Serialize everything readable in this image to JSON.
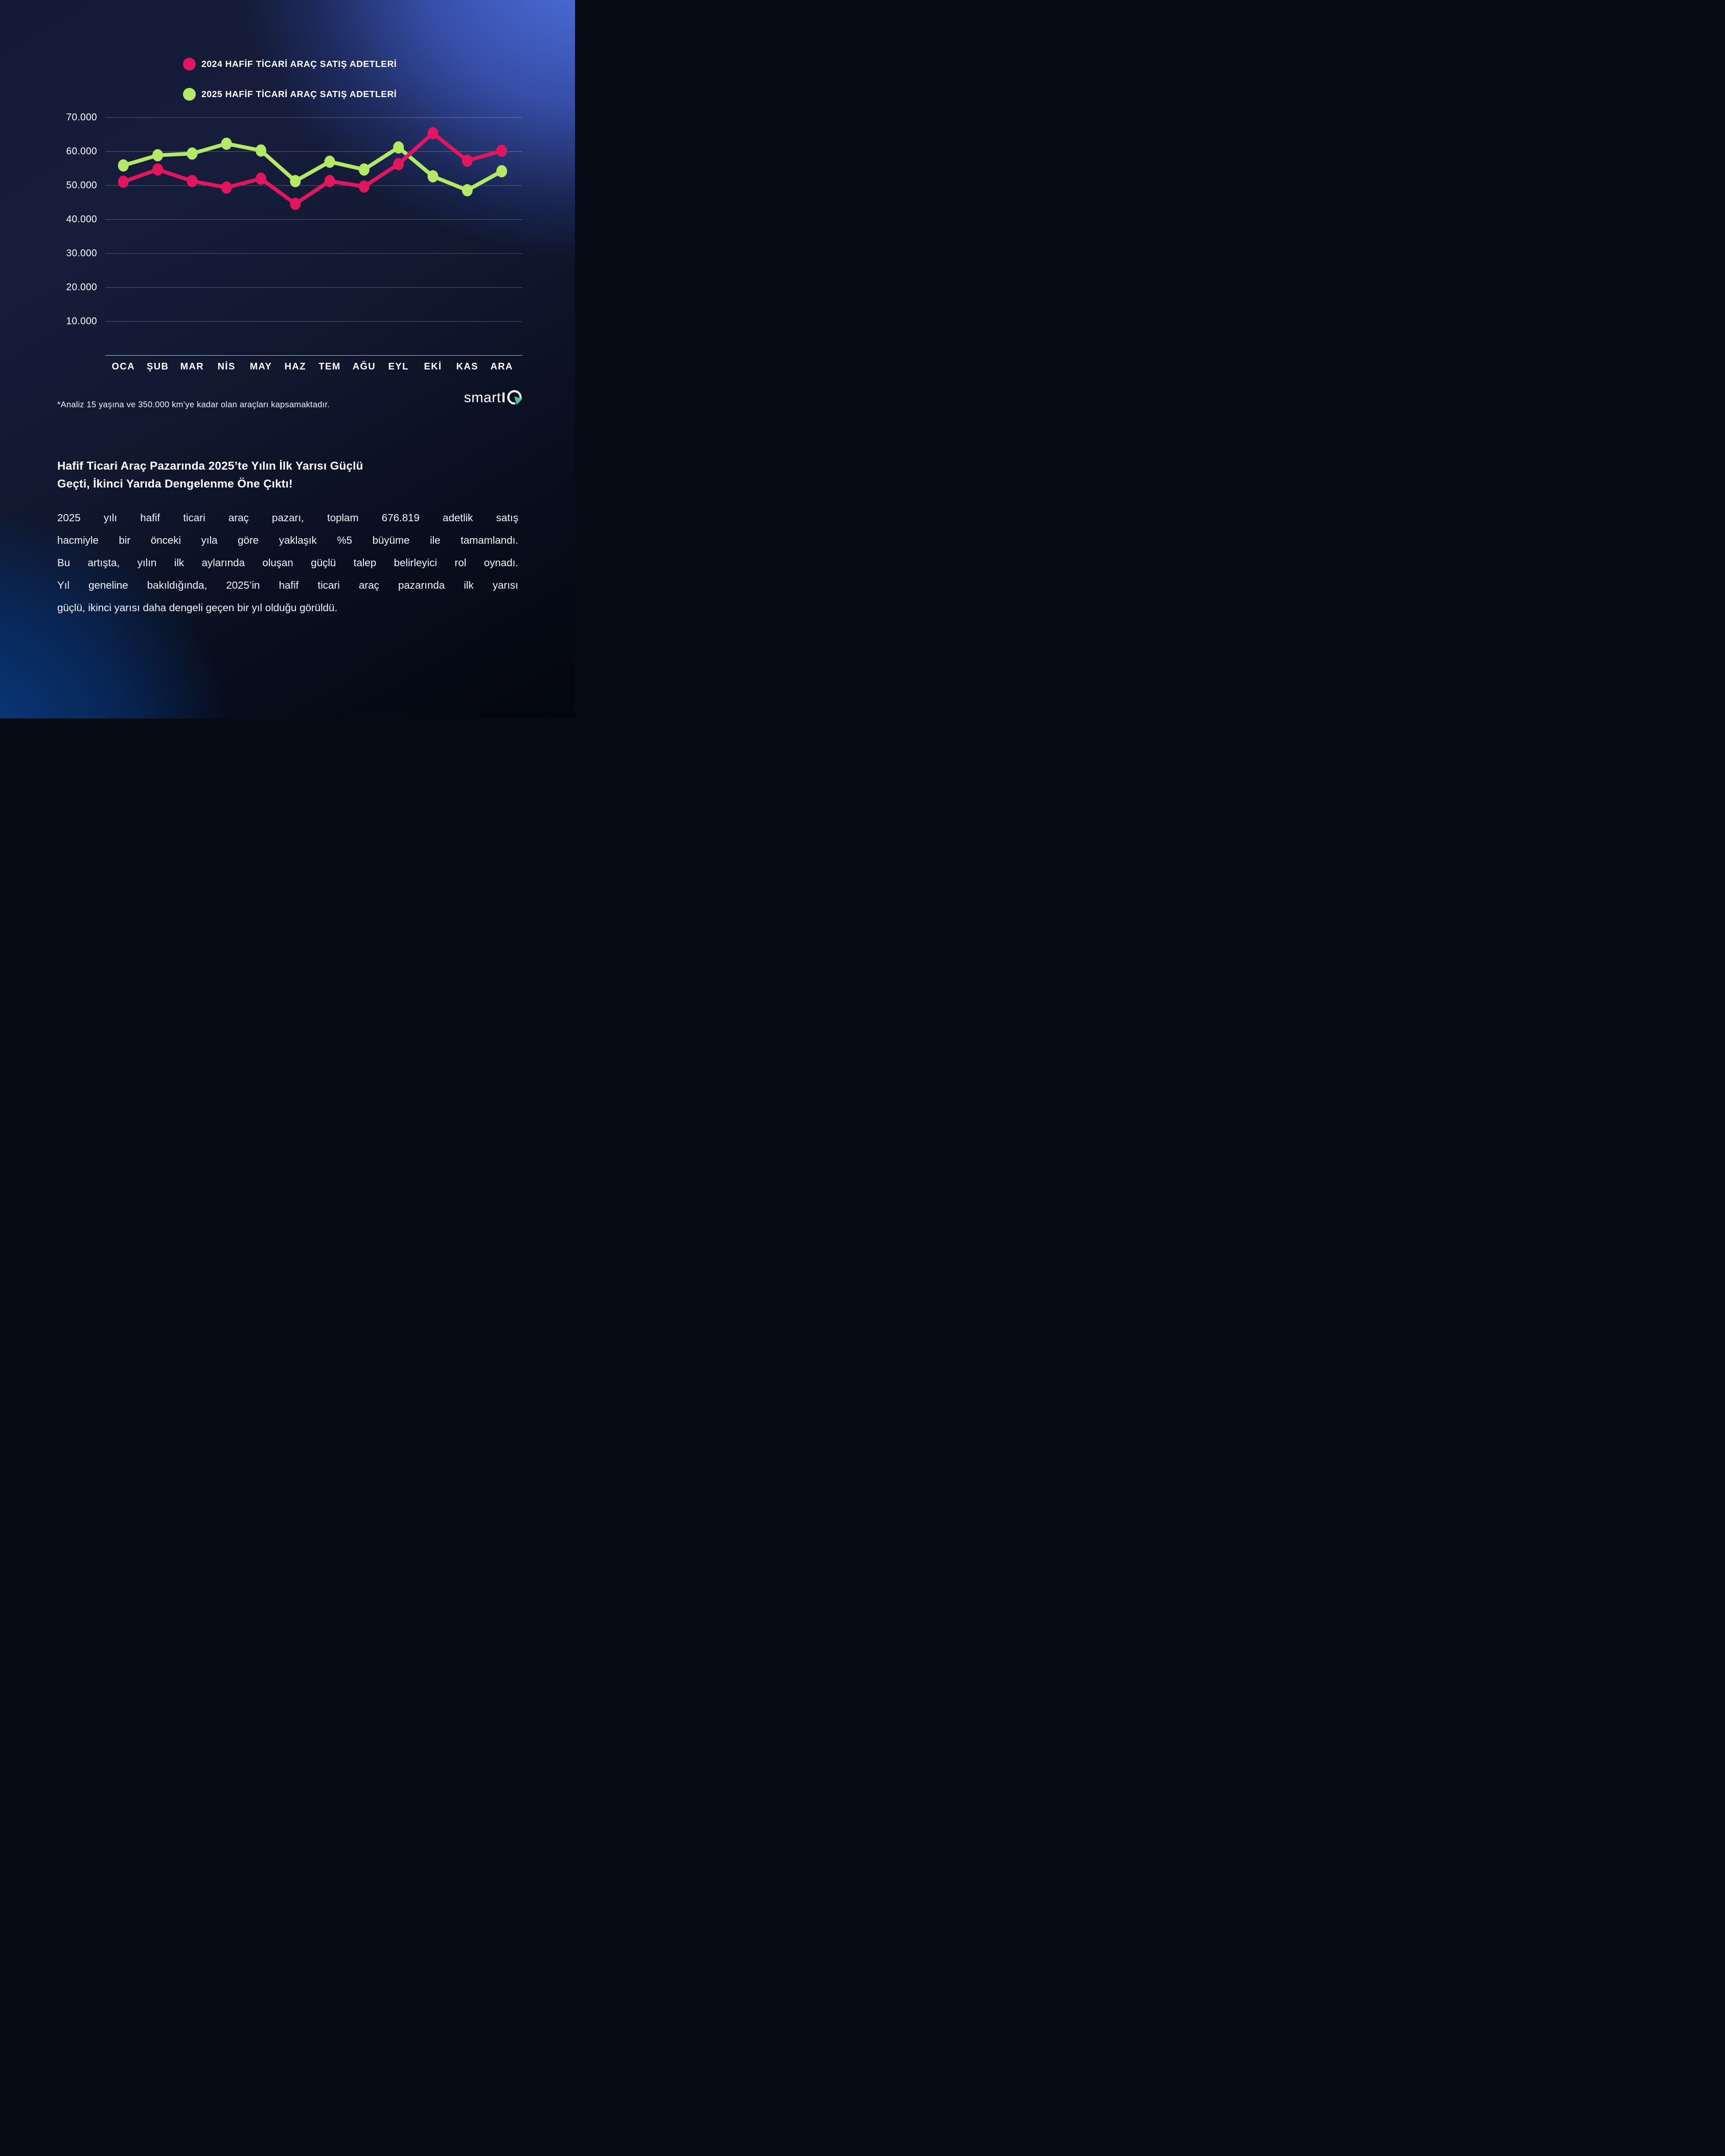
{
  "chart_data": {
    "type": "line",
    "categories": [
      "OCA",
      "ŞUB",
      "MAR",
      "NİS",
      "MAY",
      "HAZ",
      "TEM",
      "AĞU",
      "EYL",
      "EKİ",
      "KAS",
      "ARA"
    ],
    "series": [
      {
        "name": "2024 HAFİF TİCARİ ARAÇ SATIŞ ADETLERİ",
        "color": "#E0165E",
        "values": [
          51100,
          54700,
          51300,
          49400,
          52000,
          44600,
          51300,
          49700,
          56300,
          65400,
          57300,
          60200
        ]
      },
      {
        "name": "2025 HAFİF TİCARİ ARAÇ SATIŞ ADETLERİ",
        "color": "#B3E966",
        "values": [
          55900,
          58900,
          59400,
          62300,
          60300,
          51300,
          57000,
          54700,
          61200,
          52700,
          48600,
          54200
        ]
      }
    ],
    "ylim": [
      0,
      70000
    ],
    "yticks": [
      {
        "value": 70000,
        "label": "70.000"
      },
      {
        "value": 60000,
        "label": "60.000"
      },
      {
        "value": 50000,
        "label": "50.000"
      },
      {
        "value": 40000,
        "label": "40.000"
      },
      {
        "value": 30000,
        "label": "30.000"
      },
      {
        "value": 20000,
        "label": "20.000"
      },
      {
        "value": 10000,
        "label": "10.000"
      }
    ],
    "grid": "horizontal",
    "legend_position": "top",
    "title": "",
    "xlabel": "",
    "ylabel": ""
  },
  "footnote": "*Analiz 15 yaşına ve 350.000 km’ye kadar olan araçları kapsamaktadır.",
  "logo": {
    "smart": "smart",
    "i": "I",
    "accent_color": "#4FC3A5"
  },
  "heading": {
    "line1": "Hafif Ticari Araç Pazarında 2025’te Yılın İlk Yarısı Güçlü",
    "line2": "Geçti, İkinci Yarıda Dengelenme Öne Çıktı!"
  },
  "body": {
    "lines": [
      "2025 yılı hafif ticari araç pazarı, toplam 676.819 adetlik satış",
      "hacmiyle bir önceki yıla göre yaklaşık %5 büyüme ile tamamlandı.",
      "Bu artışta, yılın ilk aylarında oluşan güçlü talep belirleyici rol oynadı.",
      "Yıl geneline bakıldığında, 2025’in hafif ticari araç pazarında ilk yarısı",
      "güçlü, ikinci yarısı daha dengeli geçen bir yıl olduğu görüldü."
    ]
  },
  "colors": {
    "background_dark": "#0c1226",
    "background_glow_topright": "#4E70E0",
    "background_glow_bottomleft": "#073E87",
    "gridline": "rgba(255,255,255,0.35)",
    "axis_line": "rgba(255,255,255,0.65)",
    "text": "#FFFFFF"
  }
}
